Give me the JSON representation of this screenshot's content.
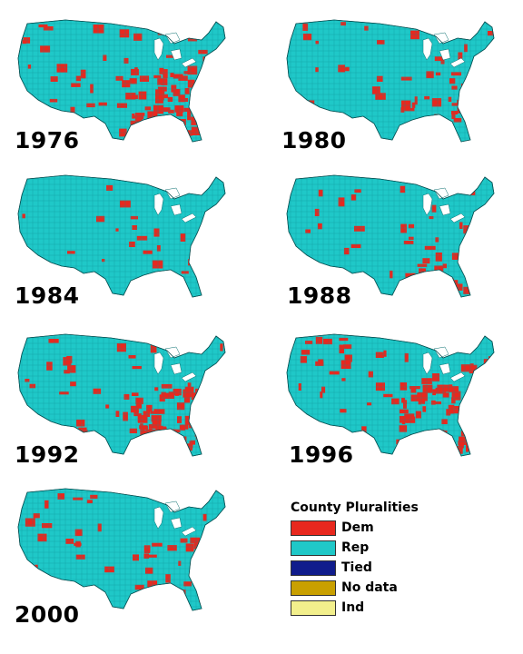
{
  "maps": [
    {
      "year": "1976",
      "dem_share": 0.5
    },
    {
      "year": "1980",
      "dem_share": 0.22
    },
    {
      "year": "1984",
      "dem_share": 0.1
    },
    {
      "year": "1988",
      "dem_share": 0.2
    },
    {
      "year": "1992",
      "dem_share": 0.45
    },
    {
      "year": "1996",
      "dem_share": 0.5
    },
    {
      "year": "2000",
      "dem_share": 0.18
    }
  ],
  "legend": {
    "title": "County Pluralities",
    "items": [
      {
        "label": "Dem",
        "color": "#e8281e"
      },
      {
        "label": "Rep",
        "color": "#1fc8c8"
      },
      {
        "label": "Tied",
        "color": "#101c8c"
      },
      {
        "label": "No data",
        "color": "#c9a000"
      },
      {
        "label": "Ind",
        "color": "#f2ef8c"
      }
    ]
  },
  "colors": {
    "dem": "#e8281e",
    "rep": "#1fc8c8",
    "lakes": "#ffffff"
  }
}
